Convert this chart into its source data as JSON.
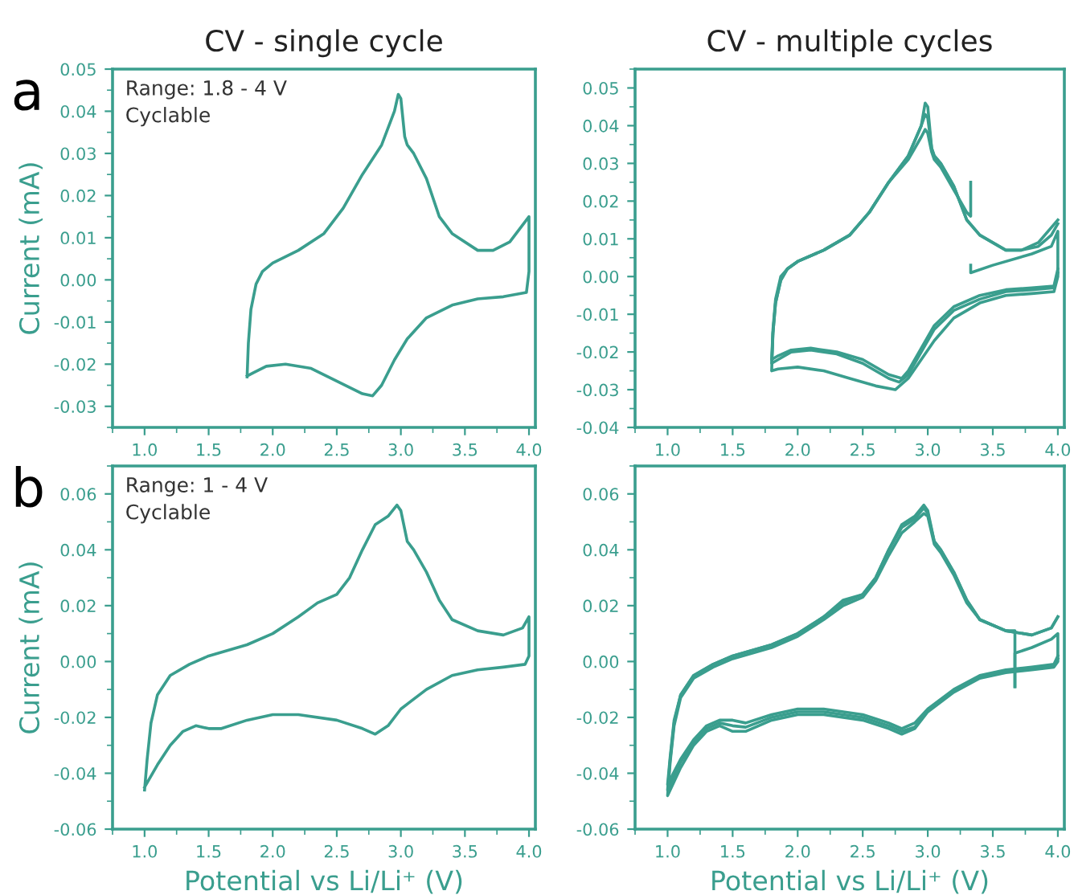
{
  "chart_data": [
    {
      "type": "line",
      "title": "CV - single cycle",
      "ylabel": "Current (mA)",
      "annotations": [
        "a",
        "Range: 1.8 - 4 V\nCyclable"
      ],
      "xlim": [
        0.75,
        4.05
      ],
      "ylim": [
        -0.035,
        0.05
      ],
      "xticks": [
        {
          "value": 1.0,
          "label": "1.0"
        },
        {
          "value": 1.5,
          "label": "1.5"
        },
        {
          "value": 2.0,
          "label": "2.0"
        },
        {
          "value": 2.5,
          "label": "2.5"
        },
        {
          "value": 3.0,
          "label": "3.0"
        },
        {
          "value": 3.5,
          "label": "3.5"
        },
        {
          "value": 4.0,
          "label": "4.0"
        }
      ],
      "yticks": [
        {
          "value": -0.03,
          "label": "-0.03"
        },
        {
          "value": -0.02,
          "label": "-0.02"
        },
        {
          "value": -0.01,
          "label": "-0.01"
        },
        {
          "value": 0.0,
          "label": "0.00"
        },
        {
          "value": 0.01,
          "label": "0.01"
        },
        {
          "value": 0.02,
          "label": "0.02"
        },
        {
          "value": 0.03,
          "label": "0.03"
        },
        {
          "value": 0.04,
          "label": "0.04"
        },
        {
          "value": 0.05,
          "label": "0.05"
        }
      ],
      "series": [
        {
          "color": "#3a9e8e",
          "x": [
            1.8,
            1.81,
            1.83,
            1.87,
            1.92,
            2.0,
            2.2,
            2.4,
            2.55,
            2.7,
            2.85,
            2.95,
            2.98,
            3.0,
            3.03,
            3.05,
            3.1,
            3.2,
            3.3,
            3.4,
            3.6,
            3.72,
            3.85,
            3.95,
            4.0,
            4.0,
            3.98,
            3.8,
            3.6,
            3.4,
            3.2,
            3.05,
            2.95,
            2.85,
            2.78,
            2.7,
            2.5,
            2.3,
            2.1,
            1.95,
            1.85,
            1.8
          ],
          "values": [
            -0.023,
            -0.015,
            -0.007,
            -0.001,
            0.002,
            0.004,
            0.007,
            0.011,
            0.017,
            0.025,
            0.032,
            0.04,
            0.044,
            0.043,
            0.034,
            0.032,
            0.03,
            0.024,
            0.015,
            0.011,
            0.007,
            0.007,
            0.009,
            0.013,
            0.015,
            0.002,
            -0.003,
            -0.004,
            -0.0045,
            -0.006,
            -0.009,
            -0.014,
            -0.019,
            -0.025,
            -0.0275,
            -0.027,
            -0.024,
            -0.021,
            -0.02,
            -0.0205,
            -0.022,
            -0.0228
          ]
        }
      ]
    },
    {
      "type": "line",
      "title": "CV - multiple cycles",
      "xlim": [
        0.75,
        4.05
      ],
      "ylim": [
        -0.04,
        0.055
      ],
      "xticks": [
        {
          "value": 1.0,
          "label": "1.0"
        },
        {
          "value": 1.5,
          "label": "1.5"
        },
        {
          "value": 2.0,
          "label": "2.0"
        },
        {
          "value": 2.5,
          "label": "2.5"
        },
        {
          "value": 3.0,
          "label": "3.0"
        },
        {
          "value": 3.5,
          "label": "3.5"
        },
        {
          "value": 4.0,
          "label": "4.0"
        }
      ],
      "yticks": [
        {
          "value": -0.04,
          "label": "-0.04"
        },
        {
          "value": -0.03,
          "label": "-0.03"
        },
        {
          "value": -0.02,
          "label": "-0.02"
        },
        {
          "value": -0.01,
          "label": "-0.01"
        },
        {
          "value": 0.0,
          "label": "0.00"
        },
        {
          "value": 0.01,
          "label": "0.01"
        },
        {
          "value": 0.02,
          "label": "0.02"
        },
        {
          "value": 0.03,
          "label": "0.03"
        },
        {
          "value": 0.04,
          "label": "0.04"
        },
        {
          "value": 0.05,
          "label": "0.05"
        }
      ],
      "series": [
        {
          "color": "#3a9e8e",
          "x": [
            3.33,
            3.33,
            3.5,
            3.8,
            3.95,
            4.0,
            4.0,
            3.97,
            3.8,
            3.6,
            3.4,
            3.2,
            3.05,
            2.95,
            2.85,
            2.75,
            2.6,
            2.4,
            2.2,
            2.0,
            1.85,
            1.8,
            1.81,
            1.83,
            1.87,
            1.92,
            2.0,
            2.2,
            2.4,
            2.55,
            2.7,
            2.85,
            2.95,
            2.98,
            3.0,
            3.03,
            3.05,
            3.1,
            3.2,
            3.3,
            3.4,
            3.6,
            3.72,
            3.85,
            3.95,
            4.0
          ],
          "values": [
            0.003,
            0.001,
            0.003,
            0.006,
            0.008,
            0.012,
            0.0,
            -0.004,
            -0.0045,
            -0.005,
            -0.007,
            -0.011,
            -0.017,
            -0.022,
            -0.027,
            -0.03,
            -0.029,
            -0.027,
            -0.025,
            -0.024,
            -0.0245,
            -0.025,
            -0.015,
            -0.007,
            -0.001,
            0.002,
            0.004,
            0.007,
            0.011,
            0.017,
            0.025,
            0.032,
            0.04,
            0.046,
            0.045,
            0.034,
            0.032,
            0.03,
            0.024,
            0.015,
            0.011,
            0.007,
            0.007,
            0.009,
            0.013,
            0.015
          ]
        },
        {
          "color": "#3a9e8e",
          "x": [
            4.0,
            3.97,
            3.8,
            3.6,
            3.4,
            3.2,
            3.05,
            2.95,
            2.85,
            2.78,
            2.7,
            2.5,
            2.3,
            2.1,
            1.95,
            1.85,
            1.8,
            1.81,
            1.83,
            1.87,
            1.92,
            2.0,
            2.2,
            2.4,
            2.55,
            2.7,
            2.85,
            2.95,
            2.98,
            3.0,
            3.03,
            3.05,
            3.1,
            3.2,
            3.3,
            3.4,
            3.6,
            3.72,
            3.85,
            3.95,
            4.0
          ],
          "values": [
            0.001,
            -0.003,
            -0.0035,
            -0.004,
            -0.006,
            -0.009,
            -0.014,
            -0.02,
            -0.026,
            -0.028,
            -0.027,
            -0.023,
            -0.0205,
            -0.0195,
            -0.02,
            -0.022,
            -0.023,
            -0.015,
            -0.007,
            -0.001,
            0.002,
            0.004,
            0.007,
            0.011,
            0.017,
            0.025,
            0.032,
            0.04,
            0.043,
            0.042,
            0.034,
            0.032,
            0.03,
            0.024,
            0.015,
            0.011,
            0.007,
            0.007,
            0.008,
            0.011,
            0.014
          ]
        },
        {
          "color": "#3a9e8e",
          "x": [
            4.0,
            3.97,
            3.8,
            3.6,
            3.4,
            3.2,
            3.05,
            2.95,
            2.85,
            2.8,
            2.7,
            2.5,
            2.3,
            2.1,
            1.95,
            1.85,
            1.8,
            1.81,
            1.83,
            1.87,
            1.92,
            2.0,
            2.2,
            2.4,
            2.55,
            2.7,
            2.85,
            2.95,
            2.98,
            3.0,
            3.03,
            3.05,
            3.1,
            3.2,
            3.3,
            3.33,
            3.33
          ],
          "values": [
            0.002,
            -0.0025,
            -0.003,
            -0.0035,
            -0.005,
            -0.008,
            -0.013,
            -0.019,
            -0.025,
            -0.027,
            -0.026,
            -0.022,
            -0.02,
            -0.019,
            -0.0195,
            -0.021,
            -0.022,
            -0.014,
            -0.006,
            0.0,
            0.002,
            0.004,
            0.007,
            0.011,
            0.017,
            0.025,
            0.031,
            0.037,
            0.039,
            0.038,
            0.033,
            0.031,
            0.029,
            0.023,
            0.017,
            0.016,
            0.025
          ]
        }
      ]
    },
    {
      "type": "line",
      "ylabel": "Current (mA)",
      "xlabel": "Potential vs Li/Li⁺ (V)",
      "annotations": [
        "b",
        "Range: 1 - 4 V\nCyclable"
      ],
      "xlim": [
        0.75,
        4.05
      ],
      "ylim": [
        -0.06,
        0.07
      ],
      "xticks": [
        {
          "value": 1.0,
          "label": "1.0"
        },
        {
          "value": 1.5,
          "label": "1.5"
        },
        {
          "value": 2.0,
          "label": "2.0"
        },
        {
          "value": 2.5,
          "label": "2.5"
        },
        {
          "value": 3.0,
          "label": "3.0"
        },
        {
          "value": 3.5,
          "label": "3.5"
        },
        {
          "value": 4.0,
          "label": "4.0"
        }
      ],
      "yticks": [
        {
          "value": -0.06,
          "label": "-0.06"
        },
        {
          "value": -0.04,
          "label": "-0.04"
        },
        {
          "value": -0.02,
          "label": "-0.02"
        },
        {
          "value": 0.0,
          "label": "0.00"
        },
        {
          "value": 0.02,
          "label": "0.02"
        },
        {
          "value": 0.04,
          "label": "0.04"
        },
        {
          "value": 0.06,
          "label": "0.06"
        }
      ],
      "series": [
        {
          "color": "#3a9e8e",
          "x": [
            1.0,
            1.02,
            1.05,
            1.1,
            1.2,
            1.35,
            1.5,
            1.8,
            2.0,
            2.2,
            2.35,
            2.5,
            2.6,
            2.7,
            2.8,
            2.9,
            2.97,
            3.0,
            3.05,
            3.1,
            3.2,
            3.3,
            3.4,
            3.6,
            3.8,
            3.95,
            4.0,
            4.0,
            3.97,
            3.8,
            3.6,
            3.4,
            3.2,
            3.0,
            2.9,
            2.8,
            2.7,
            2.5,
            2.2,
            2.0,
            1.8,
            1.6,
            1.5,
            1.4,
            1.3,
            1.2,
            1.1,
            1.0
          ],
          "values": [
            -0.046,
            -0.035,
            -0.022,
            -0.012,
            -0.005,
            -0.001,
            0.002,
            0.006,
            0.01,
            0.016,
            0.021,
            0.024,
            0.03,
            0.04,
            0.049,
            0.052,
            0.056,
            0.054,
            0.043,
            0.04,
            0.032,
            0.022,
            0.015,
            0.011,
            0.0095,
            0.012,
            0.016,
            0.002,
            -0.001,
            -0.002,
            -0.003,
            -0.005,
            -0.01,
            -0.017,
            -0.023,
            -0.026,
            -0.024,
            -0.021,
            -0.019,
            -0.019,
            -0.021,
            -0.024,
            -0.024,
            -0.023,
            -0.025,
            -0.03,
            -0.037,
            -0.045
          ]
        }
      ]
    },
    {
      "type": "line",
      "xlabel": "Potential vs Li/Li⁺ (V)",
      "xlim": [
        0.75,
        4.05
      ],
      "ylim": [
        -0.06,
        0.07
      ],
      "xticks": [
        {
          "value": 1.0,
          "label": "1.0"
        },
        {
          "value": 1.5,
          "label": "1.5"
        },
        {
          "value": 2.0,
          "label": "2.0"
        },
        {
          "value": 2.5,
          "label": "2.5"
        },
        {
          "value": 3.0,
          "label": "3.0"
        },
        {
          "value": 3.5,
          "label": "3.5"
        },
        {
          "value": 4.0,
          "label": "4.0"
        }
      ],
      "yticks": [
        {
          "value": -0.06,
          "label": "-0.06"
        },
        {
          "value": -0.04,
          "label": "-0.04"
        },
        {
          "value": -0.02,
          "label": "-0.02"
        },
        {
          "value": 0.0,
          "label": "0.00"
        },
        {
          "value": 0.02,
          "label": "0.02"
        },
        {
          "value": 0.04,
          "label": "0.04"
        },
        {
          "value": 0.06,
          "label": "0.06"
        }
      ],
      "series": [
        {
          "color": "#3a9e8e",
          "x": [
            3.67,
            3.67,
            3.8,
            3.95,
            4.0,
            4.0,
            3.97,
            3.8,
            3.6,
            3.4,
            3.2,
            3.0,
            2.9,
            2.8,
            2.7,
            2.5,
            2.2,
            2.0,
            1.8,
            1.6,
            1.5,
            1.4,
            1.3,
            1.2,
            1.1,
            1.0,
            1.02,
            1.05,
            1.1,
            1.2,
            1.35,
            1.5,
            1.8,
            2.0,
            2.2,
            2.35,
            2.5,
            2.6,
            2.7,
            2.8,
            2.9,
            2.97,
            3.0,
            3.05,
            3.1,
            3.2,
            3.3,
            3.4,
            3.6,
            3.8,
            3.95,
            4.0
          ],
          "values": [
            -0.009,
            0.003,
            0.005,
            0.008,
            0.01,
            0.0,
            -0.002,
            -0.003,
            -0.004,
            -0.006,
            -0.011,
            -0.018,
            -0.024,
            -0.026,
            -0.024,
            -0.021,
            -0.019,
            -0.019,
            -0.021,
            -0.025,
            -0.025,
            -0.023,
            -0.025,
            -0.03,
            -0.038,
            -0.048,
            -0.036,
            -0.023,
            -0.013,
            -0.006,
            -0.002,
            0.001,
            0.005,
            0.009,
            0.015,
            0.02,
            0.023,
            0.029,
            0.038,
            0.046,
            0.05,
            0.053,
            0.052,
            0.042,
            0.039,
            0.031,
            0.021,
            0.015,
            0.011,
            0.0095,
            0.012,
            0.016
          ]
        },
        {
          "color": "#3a9e8e",
          "x": [
            4.0,
            3.97,
            3.8,
            3.6,
            3.4,
            3.2,
            3.0,
            2.9,
            2.8,
            2.7,
            2.5,
            2.2,
            2.0,
            1.8,
            1.6,
            1.5,
            1.4,
            1.3,
            1.2,
            1.1,
            1.0,
            1.02,
            1.05,
            1.1,
            1.2,
            1.35,
            1.5,
            1.8,
            2.0,
            2.2,
            2.35,
            2.5,
            2.6,
            2.7,
            2.8,
            2.9,
            2.97,
            3.0,
            3.05,
            3.1,
            3.2,
            3.3,
            3.4,
            3.6,
            3.8,
            3.95,
            4.0
          ],
          "values": [
            0.001,
            -0.0015,
            -0.0025,
            -0.0035,
            -0.0055,
            -0.0105,
            -0.0175,
            -0.0235,
            -0.025,
            -0.023,
            -0.02,
            -0.018,
            -0.018,
            -0.02,
            -0.0235,
            -0.023,
            -0.022,
            -0.024,
            -0.029,
            -0.036,
            -0.046,
            -0.035,
            -0.022,
            -0.012,
            -0.005,
            -0.001,
            0.002,
            0.006,
            0.01,
            0.016,
            0.022,
            0.024,
            0.03,
            0.04,
            0.049,
            0.052,
            0.056,
            0.054,
            0.043,
            0.04,
            0.032,
            0.022,
            0.015,
            0.011,
            0.0095,
            0.012,
            0.016
          ]
        },
        {
          "color": "#3a9e8e",
          "x": [
            4.0,
            3.97,
            3.8,
            3.6,
            3.4,
            3.2,
            3.0,
            2.9,
            2.8,
            2.7,
            2.5,
            2.2,
            2.0,
            1.8,
            1.6,
            1.5,
            1.4,
            1.3,
            1.2,
            1.1,
            1.0,
            1.02,
            1.05,
            1.1,
            1.2,
            1.35,
            1.5,
            1.8,
            2.0,
            2.2,
            2.35,
            2.5,
            2.6,
            2.7,
            2.8,
            2.9,
            2.97,
            3.0,
            3.05,
            3.1,
            3.2,
            3.3,
            3.4,
            3.6,
            3.67,
            3.67
          ],
          "values": [
            0.002,
            -0.001,
            -0.002,
            -0.003,
            -0.005,
            -0.01,
            -0.017,
            -0.022,
            -0.024,
            -0.022,
            -0.019,
            -0.017,
            -0.017,
            -0.019,
            -0.022,
            -0.021,
            -0.021,
            -0.023,
            -0.028,
            -0.035,
            -0.044,
            -0.034,
            -0.021,
            -0.012,
            -0.005,
            -0.001,
            0.002,
            0.006,
            0.01,
            0.016,
            0.021,
            0.024,
            0.03,
            0.04,
            0.048,
            0.051,
            0.055,
            0.053,
            0.043,
            0.04,
            0.032,
            0.022,
            0.015,
            0.011,
            0.011,
            -0.009
          ]
        }
      ]
    }
  ]
}
